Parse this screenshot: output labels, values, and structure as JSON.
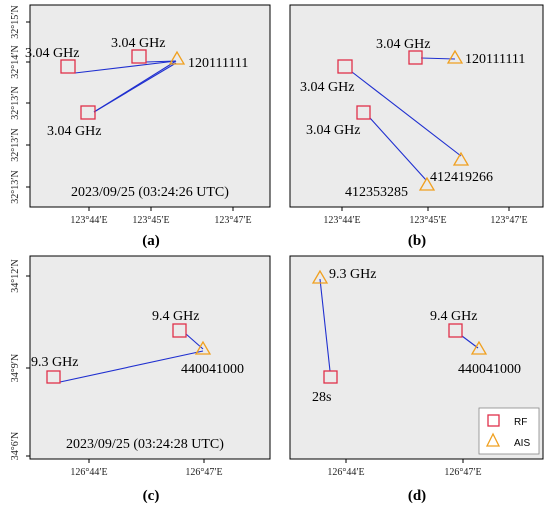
{
  "panels": {
    "a": {
      "caption": "(a)",
      "timestamp": "2023/09/25 (03:24:26 UTC)",
      "x_ticks": [
        "123°44′E",
        "123°45′E",
        "123°47′E"
      ],
      "y_ticks": [
        "32°15′N",
        "32°14′N",
        "32°13′N",
        "32°13′N",
        "32°13′N"
      ],
      "labels": {
        "rf1": "3.04 GHz",
        "rf2": "3.04 GHz",
        "rf3": "3.04 GHz",
        "ais1": "120111111"
      }
    },
    "b": {
      "caption": "(b)",
      "x_ticks": [
        "123°44′E",
        "123°45′E",
        "123°47′E"
      ],
      "labels": {
        "rf1": "3.04 GHz",
        "rf2": "3.04 GHz",
        "rf3": "3.04 GHz",
        "ais1": "120111111",
        "ais2": "412419266",
        "ais3": "412353285"
      }
    },
    "c": {
      "caption": "(c)",
      "timestamp": "2023/09/25 (03:24:28 UTC)",
      "x_ticks": [
        "126°44′E",
        "126°47′E"
      ],
      "y_ticks": [
        "34°12′N",
        "34°9′N",
        "34°6′N"
      ],
      "labels": {
        "rf1": "9.4 GHz",
        "rf2": "9.3 GHz",
        "ais1": "440041000"
      }
    },
    "d": {
      "caption": "(d)",
      "x_ticks": [
        "126°44′E",
        "126°47′E"
      ],
      "labels": {
        "ais_a": "9.3 GHz",
        "rf_a": "28s",
        "rf_b": "9.4 GHz",
        "ais_b": "440041000"
      }
    }
  },
  "legend": {
    "rf": "RF",
    "ais": "AIS"
  },
  "colors": {
    "rf": "#e0304a",
    "ais": "#f0a020",
    "link": "#1f2fd0",
    "background": "#ebebeb"
  }
}
